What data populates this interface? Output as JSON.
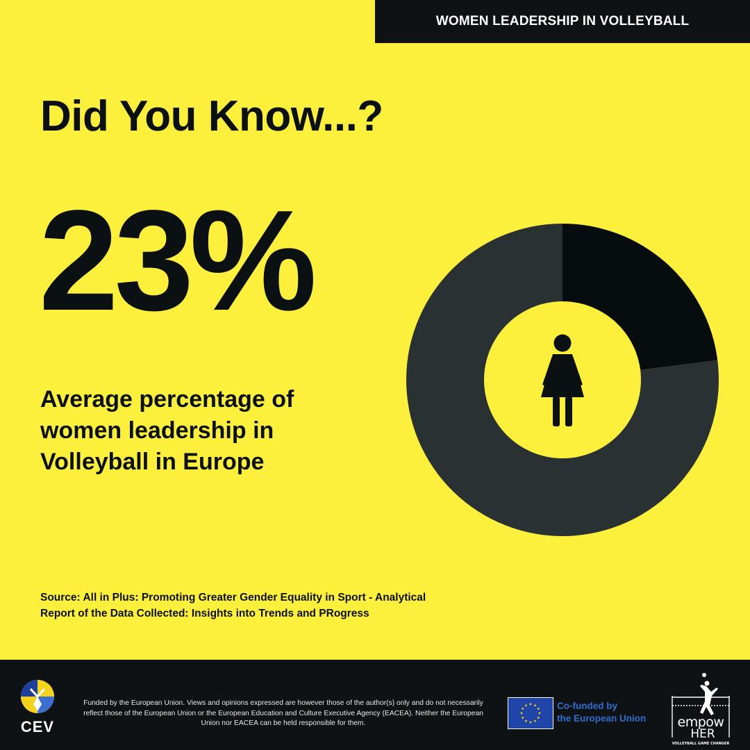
{
  "banner": {
    "title": "WOMEN LEADERSHIP IN VOLLEYBALL"
  },
  "headline": "Did You Know...?",
  "stat": {
    "value": "23%"
  },
  "description": "Average percentage of women leadership in Volleyball in Europe",
  "source": "Source: All in Plus: Promoting Greater Gender Equality in Sport - Analytical Report of the Data Collected: Insights into Trends and PRogress",
  "chart_data": {
    "type": "pie",
    "variant": "donut",
    "values": [
      23,
      77
    ],
    "colors": [
      "#070d0f",
      "#2a3133"
    ],
    "center_icon": "woman-figure-icon"
  },
  "footer": {
    "cev_label": "CEV",
    "disclaimer": "Funded by the European Union. Views and opinions expressed are however those of the author(s) only and do not necessarily reflect those of the European Union or the European Education and Culture Executive Agency (EACEA). Neither the European Union nor EACEA can be held responsible for them.",
    "eu_label_line1": "Co-funded by",
    "eu_label_line2": "the European Union",
    "empower_logo_text": "empowHER",
    "empower_tagline": "VOLLEYBALL GAME CHANGER"
  },
  "colors": {
    "background": "#fdf03d",
    "dark": "#0e1214",
    "eu_blue": "#1f45a8",
    "eu_star": "#ffd617",
    "eu_text": "#2d6ed0"
  }
}
